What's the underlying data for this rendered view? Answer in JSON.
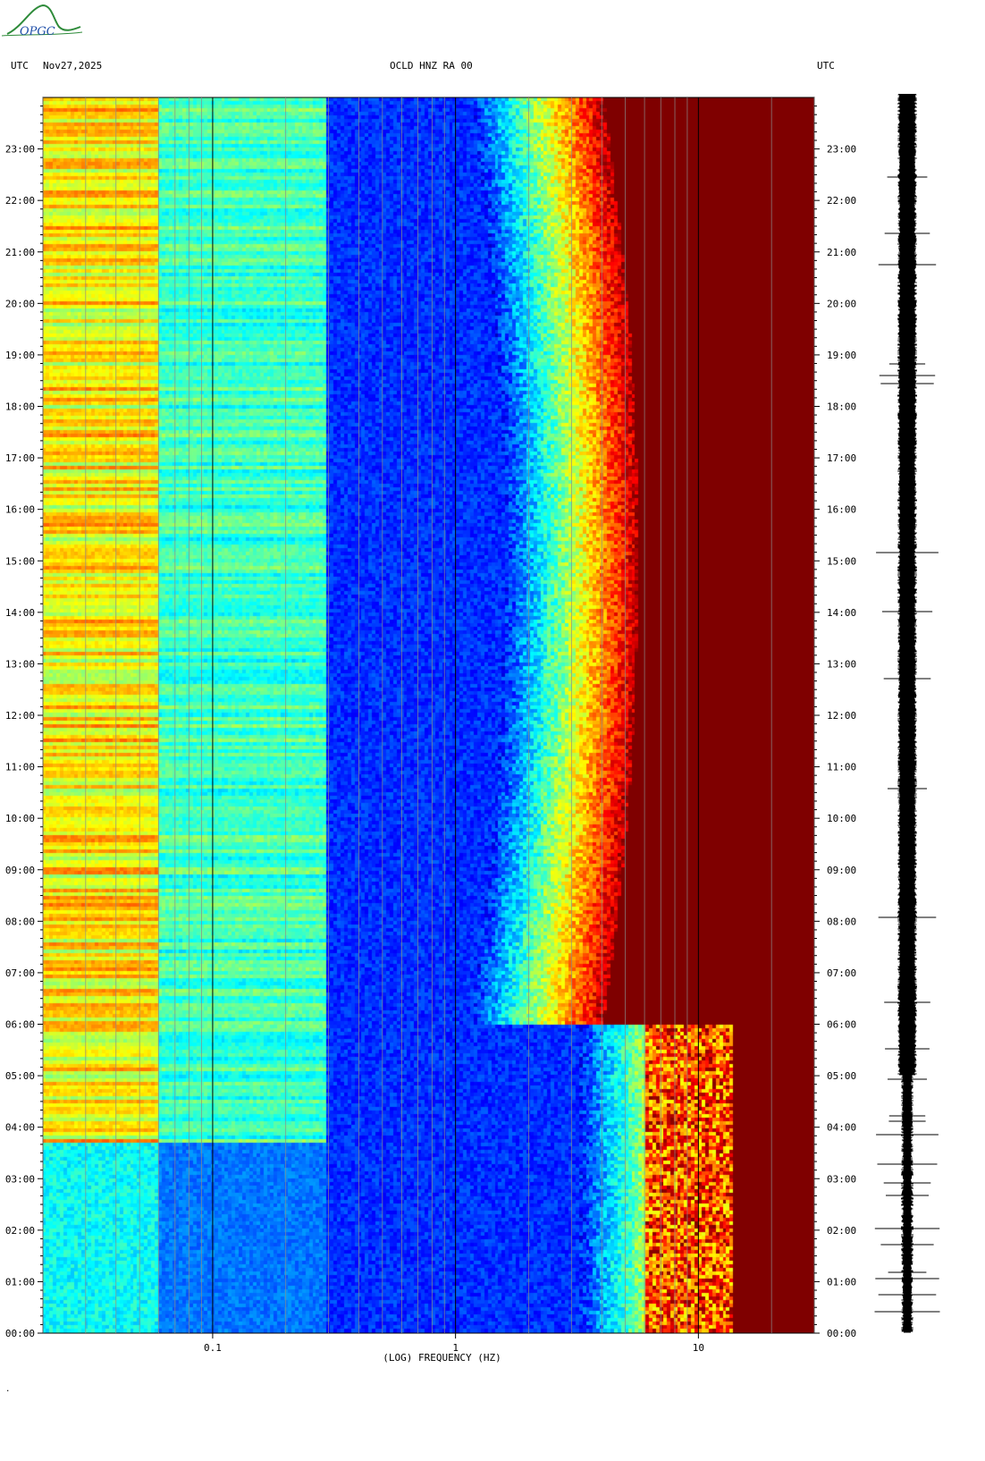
{
  "header": {
    "left_label": "UTC",
    "date": "Nov27,2025",
    "station": "OCLD HNZ RA 00",
    "right_label": "UTC",
    "logo_text": "OPGC"
  },
  "footer": {
    "mark": "."
  },
  "chart_data": {
    "type": "heatmap",
    "title": "OCLD HNZ RA 00",
    "xlabel": "(LOG) FREQUENCY (HZ)",
    "xscale": "log",
    "xlim": [
      0.02,
      30
    ],
    "x_ticks": [
      {
        "value": 0.1,
        "label": "0.1"
      },
      {
        "value": 1,
        "label": "1"
      },
      {
        "value": 10,
        "label": "10"
      }
    ],
    "y_ticks": [
      "00:00",
      "01:00",
      "02:00",
      "03:00",
      "04:00",
      "05:00",
      "06:00",
      "07:00",
      "08:00",
      "09:00",
      "10:00",
      "11:00",
      "12:00",
      "13:00",
      "14:00",
      "15:00",
      "16:00",
      "17:00",
      "18:00",
      "19:00",
      "20:00",
      "21:00",
      "22:00",
      "23:00"
    ],
    "ylim_hours": [
      0,
      24
    ],
    "colormap": [
      "#00007f",
      "#0000ff",
      "#0080ff",
      "#00ffff",
      "#80ff80",
      "#ffff00",
      "#ff8000",
      "#ff0000",
      "#7f0000"
    ],
    "notes": "spectral power vs time of day; low power minimum near 0.5-1 Hz, high power above ~3 Hz"
  },
  "waveform": {
    "name": "seismogram trace",
    "color": "#000000"
  }
}
